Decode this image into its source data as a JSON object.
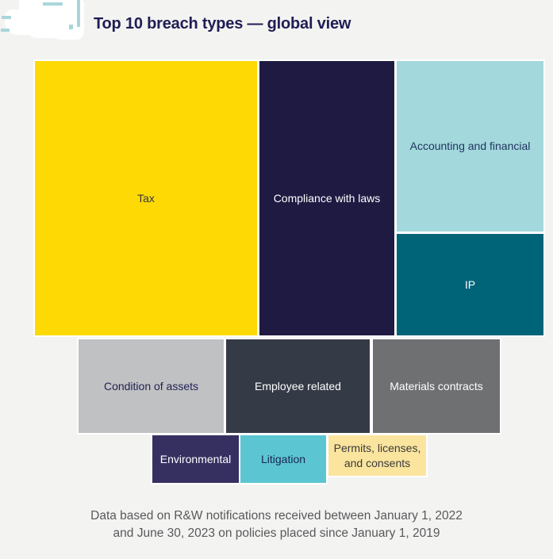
{
  "page": {
    "background": "#f3f3f1",
    "title": "Top 10 breach types — global view",
    "title_color": "#201d54"
  },
  "logo": {
    "description": "redacted-white-logo",
    "accent_color": "#a9d6db"
  },
  "chart_data": {
    "type": "treemap",
    "title": "Top 10 breach types — global view",
    "legend": "none",
    "values_shown": false,
    "tiles": [
      {
        "rank": 1,
        "label": "Tax",
        "color": "#ffd903",
        "text_color": "#363543"
      },
      {
        "rank": 2,
        "label": "Compliance with laws",
        "color": "#1e1a42",
        "text_color": "#ffffff"
      },
      {
        "rank": 3,
        "label": "Accounting and financial",
        "color": "#a3d8dd",
        "text_color": "#20355e"
      },
      {
        "rank": 4,
        "label": "IP",
        "color": "#006478",
        "text_color": "#ffffff"
      },
      {
        "rank": 5,
        "label": "Condition of assets",
        "color": "#c0c1c3",
        "text_color": "#232253"
      },
      {
        "rank": 6,
        "label": "Employee related",
        "color": "#343a46",
        "text_color": "#ffffff"
      },
      {
        "rank": 7,
        "label": "Materials contracts",
        "color": "#6e7072",
        "text_color": "#ffffff"
      },
      {
        "rank": 8,
        "label": "Environmental",
        "color": "#363061",
        "text_color": "#ffffff"
      },
      {
        "rank": 9,
        "label": "Litigation",
        "color": "#5bc6d2",
        "text_color": "#19254e"
      },
      {
        "rank": 10,
        "label": "Permits, licenses,\nand consents",
        "color": "#fae49e",
        "text_color": "#3a3a3a"
      }
    ]
  },
  "footer": {
    "line1": "Data based on R&W notifications received between January 1, 2022",
    "line2": "and June 30, 2023 on policies placed since January 1, 2019",
    "color": "#58595b"
  }
}
